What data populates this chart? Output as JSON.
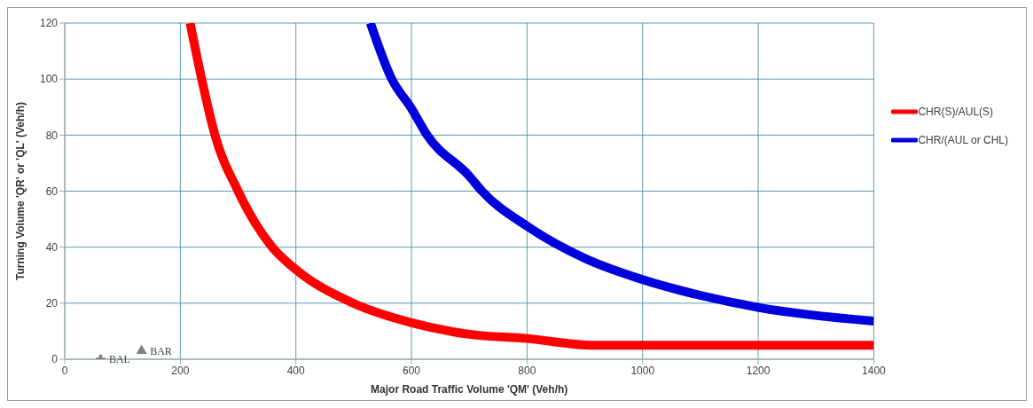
{
  "chart_data": {
    "type": "line",
    "xlabel": "Major Road Traffic Volume 'QM' (Veh/h)",
    "ylabel": "Turning Volume 'QR' or 'QL' (Veh/h)",
    "xlim": [
      0,
      1400
    ],
    "xticks": [
      0,
      200,
      400,
      600,
      800,
      1000,
      1200,
      1400
    ],
    "ylim": [
      0,
      120
    ],
    "yticks": [
      0,
      20,
      40,
      60,
      80,
      100,
      120
    ],
    "grid": true,
    "legend": "right",
    "marker": "none",
    "line_style": "solid",
    "series": [
      {
        "name": "CHR(S)/AUL(S)",
        "color": "#ff0000",
        "x": [
          217,
          237,
          260,
          300,
          359,
          400,
          499,
          600,
          700,
          800,
          913,
          1000,
          1200,
          1400
        ],
        "values": [
          120,
          100,
          80,
          60,
          40,
          32,
          20,
          13,
          8.9,
          7.4,
          5,
          5,
          5,
          5
        ]
      },
      {
        "name": "CHR/(AUL or CHL)",
        "color": "#0000dd",
        "x": [
          529,
          566,
          600,
          627,
          700,
          722,
          800,
          900,
          1000,
          1100,
          1200,
          1400
        ],
        "values": [
          120,
          100,
          89.5,
          80,
          65.4,
          60,
          47.5,
          36,
          28.4,
          22.8,
          18.5,
          13.6
        ]
      },
      {
        "name": "BAL",
        "type": "scatter",
        "marker": "cross",
        "color": "#808080",
        "x": [
          62
        ],
        "values": [
          0
        ]
      },
      {
        "name": "BAR",
        "type": "scatter",
        "marker": "triangle",
        "color": "#808080",
        "x": [
          133
        ],
        "values": [
          3
        ]
      }
    ]
  }
}
